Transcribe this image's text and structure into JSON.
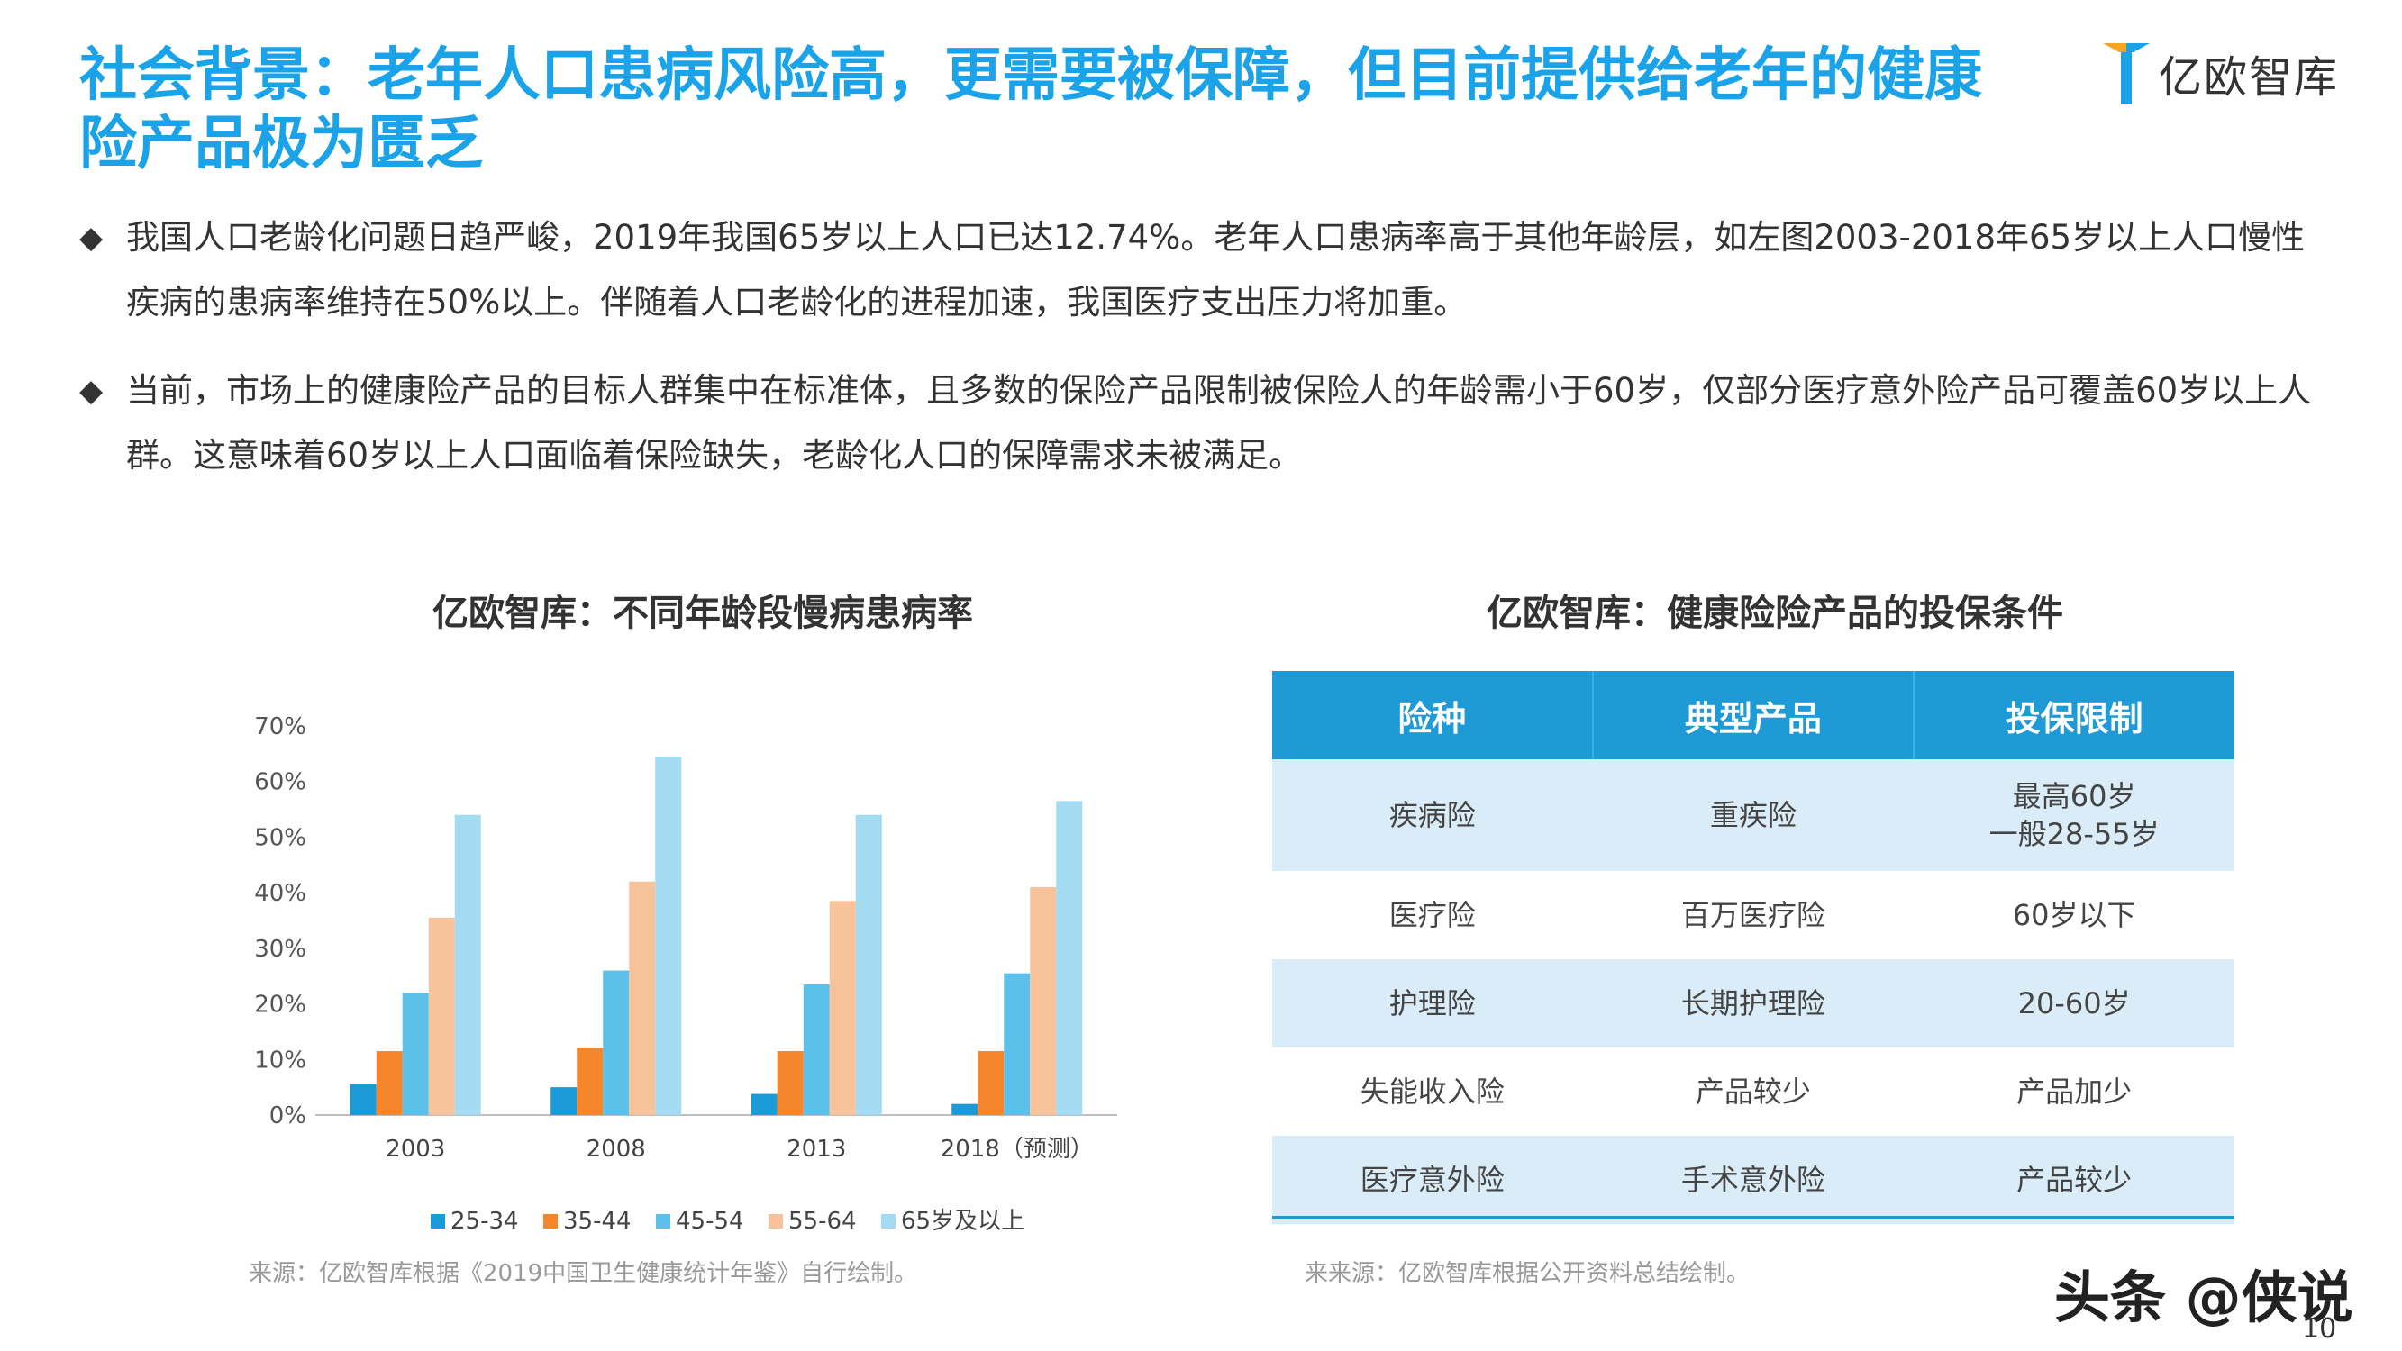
{
  "title": "社会背景：老年人口患病风险高，更需要被保障，但目前提供给老年的健康险产品极为匮乏",
  "logo": {
    "text": "亿欧智库",
    "icon": "yiou-logo-icon"
  },
  "bullets": [
    {
      "marker": "◆",
      "text": "我国人口老龄化问题日趋严峻，2019年我国65岁以上人口已达12.74%。老年人口患病率高于其他年龄层，如左图2003-2018年65岁以上人口慢性疾病的患病率维持在50%以上。伴随着人口老龄化的进程加速，我国医疗支出压力将加重。"
    },
    {
      "marker": "◆",
      "text": "当前，市场上的健康险产品的目标人群集中在标准体，且多数的保险产品限制被保险人的年龄需小于60岁，仅部分医疗意外险产品可覆盖60岁以上人群。这意味着60岁以上人口面临着保险缺失，老龄化人口的保障需求未被满足。"
    }
  ],
  "chart_title": "亿欧智库：不同年龄段慢病患病率",
  "chart_data": {
    "type": "bar",
    "title": "亿欧智库：不同年龄段慢病患病率",
    "categories": [
      "2003",
      "2008",
      "2013",
      "2018（预测）"
    ],
    "series": [
      {
        "name": "25-34",
        "values": [
          5.5,
          5.0,
          3.8,
          2.0
        ],
        "color": "#1a9ad6"
      },
      {
        "name": "35-44",
        "values": [
          11.5,
          12.0,
          11.5,
          11.5
        ],
        "color": "#f5862c"
      },
      {
        "name": "45-54",
        "values": [
          22.0,
          26.0,
          23.5,
          25.5
        ],
        "color": "#5cc0ea"
      },
      {
        "name": "55-64",
        "values": [
          35.5,
          42.0,
          38.5,
          41.0
        ],
        "color": "#f8c39a"
      },
      {
        "name": "65岁及以上",
        "values": [
          54.0,
          64.5,
          54.0,
          56.5
        ],
        "color": "#a3dbf3"
      }
    ],
    "y_ticks": [
      "0%",
      "10%",
      "20%",
      "30%",
      "40%",
      "50%",
      "60%",
      "70%"
    ],
    "ylim": [
      0,
      70
    ],
    "grid": false,
    "legend_position": "bottom"
  },
  "chart_source": "来源：亿欧智库根据《2019中国卫生健康统计年鉴》自行绘制。",
  "table_title": "亿欧智库：健康险险产品的投保条件",
  "table": {
    "headers": [
      "险种",
      "典型产品",
      "投保限制"
    ],
    "rows": [
      [
        "疾病险",
        "重疾险",
        "最高60岁\n一般28-55岁"
      ],
      [
        "医疗险",
        "百万医疗险",
        "60岁以下"
      ],
      [
        "护理险",
        "长期护理险",
        "20-60岁"
      ],
      [
        "失能收入险",
        "产品较少",
        "产品加少"
      ],
      [
        "医疗意外险",
        "手术意外险",
        "产品较少"
      ]
    ]
  },
  "table_source": "来来源：亿欧智库根据公开资料总结绘制。",
  "watermark": "头条 @侠说",
  "page_number": "10",
  "colors": {
    "title": "#1aa3e8",
    "header_bg": "#1e9ad6",
    "row_shade": "#d9ecf8"
  }
}
